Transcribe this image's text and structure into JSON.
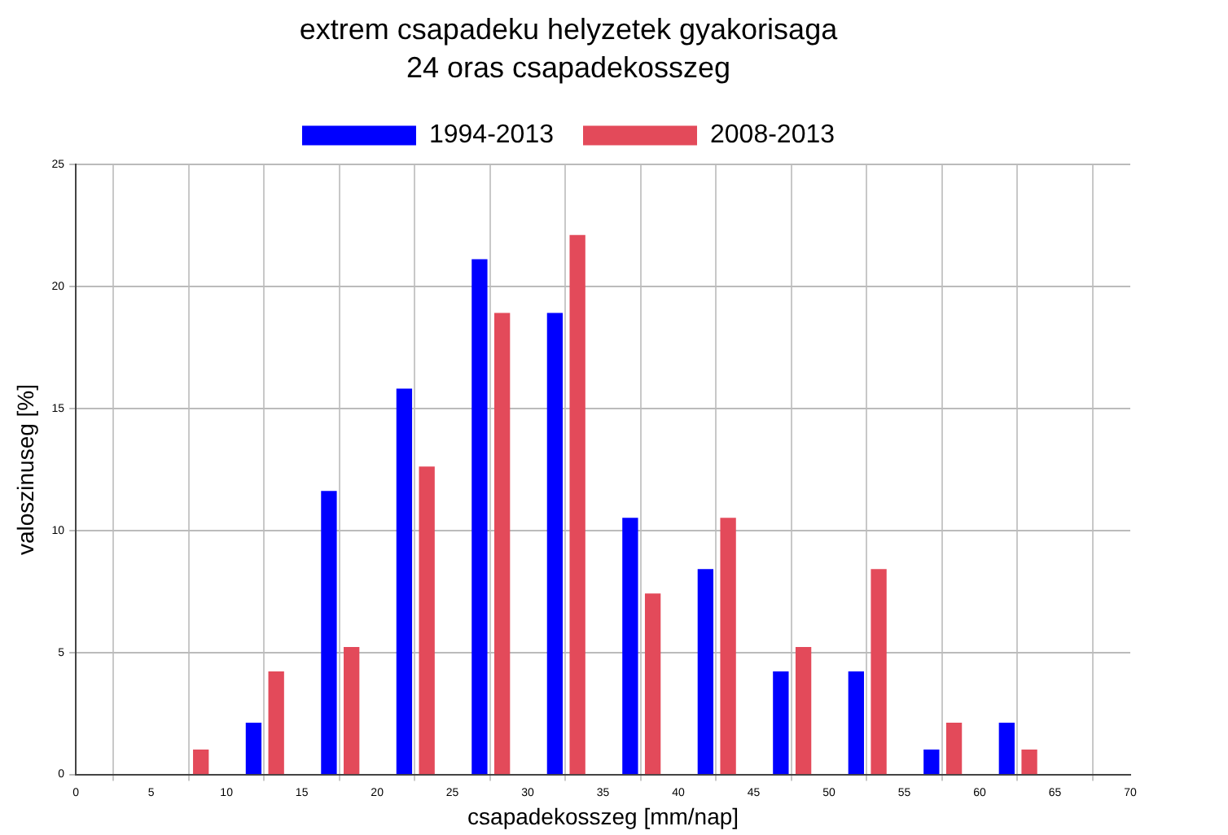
{
  "chart_data": {
    "type": "bar",
    "title": "extrem csapadeku helyzetek gyakorisaga",
    "subtitle": "24 oras csapadekosszeg",
    "xlabel": "csapadekosszeg [mm/nap]",
    "ylabel": "valoszinuseg [%]",
    "series": [
      {
        "name": "1994-2013",
        "color": "#0000ff",
        "x": [
          11.8,
          16.8,
          21.8,
          26.8,
          31.8,
          36.8,
          41.8,
          46.8,
          51.8,
          56.8,
          61.8
        ],
        "values": [
          2.1,
          11.6,
          15.8,
          21.1,
          18.9,
          10.5,
          8.4,
          4.2,
          4.2,
          1.0,
          2.1
        ]
      },
      {
        "name": "2008-2013",
        "color": "#e34a5a",
        "x": [
          8.3,
          13.3,
          18.3,
          23.3,
          28.3,
          33.3,
          38.3,
          43.3,
          48.3,
          53.3,
          58.3,
          63.3
        ],
        "values": [
          1.0,
          4.2,
          5.2,
          12.6,
          18.9,
          22.1,
          7.4,
          10.5,
          5.2,
          8.4,
          2.1,
          1.0
        ]
      }
    ],
    "xlim": [
      0,
      70
    ],
    "xticks": [
      0,
      5,
      10,
      15,
      20,
      25,
      30,
      35,
      40,
      45,
      50,
      55,
      60,
      65,
      70
    ],
    "ylim": [
      0,
      25
    ],
    "yticks": [
      0,
      5,
      10,
      15,
      20,
      25
    ],
    "grid": true,
    "legend": "top"
  }
}
